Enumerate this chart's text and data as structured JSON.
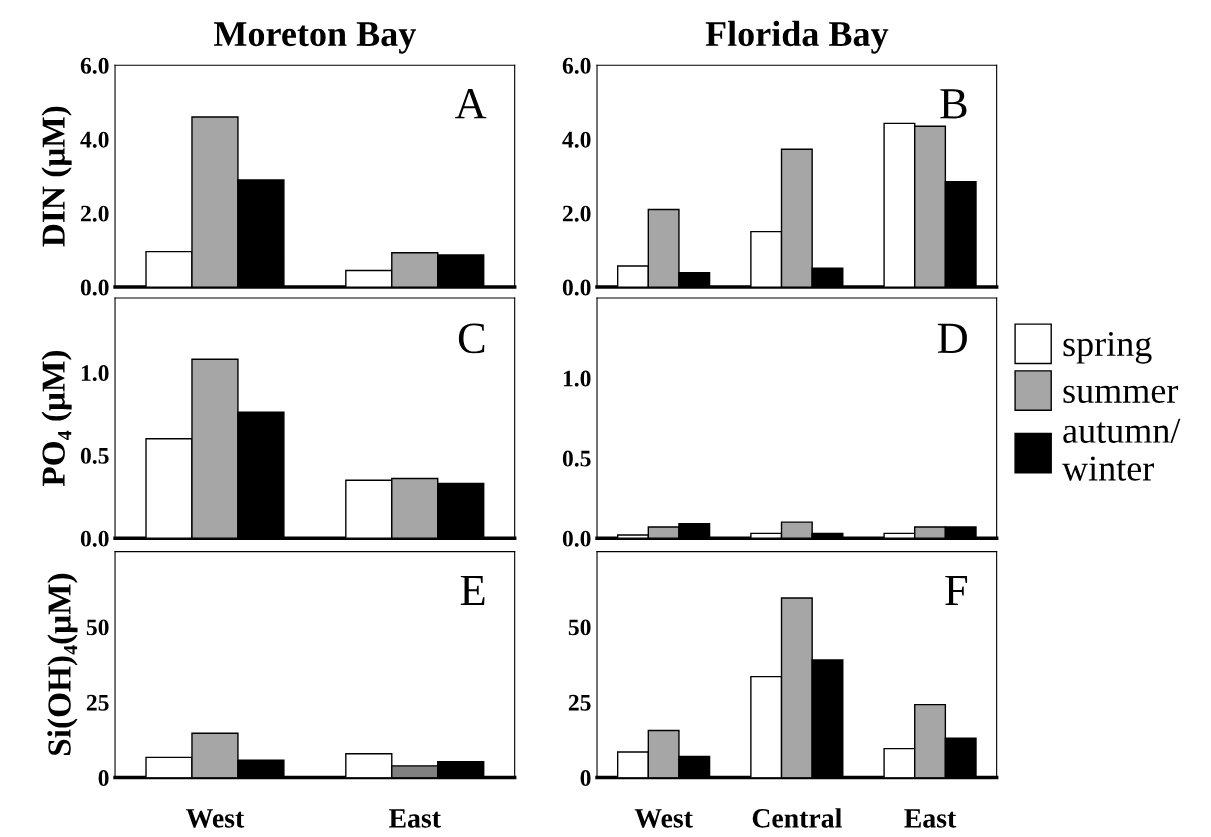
{
  "chart_data": [
    {
      "type": "bar",
      "title": "Moreton Bay",
      "ylabel": "DIN (μM)",
      "categories": [
        null,
        null
      ],
      "tick_labels": "y",
      "annotations": [
        "A"
      ],
      "ylim": [
        0,
        6.0
      ],
      "yticks": [
        {
          "value": 0,
          "label": "0.0"
        },
        {
          "value": 2,
          "label": "2.0"
        },
        {
          "value": 4,
          "label": "4.0"
        },
        {
          "value": 6,
          "label": "6.0"
        }
      ],
      "series": [
        {
          "color": "#ffffff",
          "values": [
            0.96,
            0.45
          ]
        },
        {
          "color": "#a6a6a6",
          "values": [
            4.6,
            0.93
          ]
        },
        {
          "color": "#000000",
          "values": [
            2.9,
            0.87
          ]
        }
      ]
    },
    {
      "type": "bar",
      "title": "Florida Bay",
      "categories": [
        null,
        null,
        null
      ],
      "tick_labels": "y",
      "annotations": [
        "B"
      ],
      "ylim": [
        0,
        6.0
      ],
      "yticks": [
        {
          "value": 0,
          "label": "0.0"
        },
        {
          "value": 2,
          "label": "2.0"
        },
        {
          "value": 4,
          "label": "4.0"
        },
        {
          "value": 6,
          "label": "6.0"
        }
      ],
      "series": [
        {
          "color": "#ffffff",
          "values": [
            0.57,
            1.5,
            4.43
          ]
        },
        {
          "color": "#a6a6a6",
          "values": [
            2.1,
            3.73,
            4.35
          ]
        },
        {
          "color": "#000000",
          "values": [
            0.39,
            0.51,
            2.85
          ]
        }
      ]
    },
    {
      "type": "bar",
      "ylabel": "PO₄ (μM)",
      "categories": [
        null,
        null
      ],
      "tick_labels": "y",
      "annotations": [
        "C"
      ],
      "ylim": [
        0,
        1.45
      ],
      "yticks": [
        {
          "value": 0,
          "label": "0.0"
        },
        0.5,
        {
          "value": 1,
          "label": "1.0"
        }
      ],
      "series": [
        {
          "color": "#ffffff",
          "values": [
            0.6,
            0.35
          ]
        },
        {
          "color": "#a6a6a6",
          "values": [
            1.08,
            0.36
          ]
        },
        {
          "color": "#000000",
          "values": [
            0.76,
            0.33
          ]
        }
      ]
    },
    {
      "type": "bar",
      "categories": [
        null,
        null,
        null
      ],
      "tick_labels": "y",
      "annotations": [
        "D"
      ],
      "legend": "right",
      "ylim": [
        0,
        1.5
      ],
      "yticks": [
        {
          "value": 0,
          "label": "0.0"
        },
        0.5,
        {
          "value": 1,
          "label": "1.0"
        }
      ],
      "series": [
        {
          "name": "spring",
          "color": "#ffffff",
          "values": [
            0.02,
            0.03,
            0.03
          ]
        },
        {
          "name": "summer",
          "color": "#a6a6a6",
          "values": [
            0.07,
            0.1,
            0.07
          ]
        },
        {
          "name": "autumn/\nwinter",
          "color": "#000000",
          "values": [
            0.09,
            0.03,
            0.07
          ]
        }
      ]
    },
    {
      "type": "bar",
      "ylabel": "Si(OH)₄(μM)",
      "categories": [
        "West",
        "East"
      ],
      "annotations": [
        "E"
      ],
      "ylim": [
        0,
        75
      ],
      "yticks": [
        0,
        25,
        50
      ],
      "series": [
        {
          "color": "#ffffff",
          "values": [
            6.7,
            7.9
          ]
        },
        {
          "color": "#a6a6a6",
          "colors": [
            "#a6a6a6",
            "#808080"
          ],
          "values": [
            14.7,
            3.9
          ]
        },
        {
          "color": "#000000",
          "values": [
            5.8,
            5.3
          ]
        }
      ]
    },
    {
      "type": "bar",
      "categories": [
        "West",
        "Central",
        "East"
      ],
      "annotations": [
        "F"
      ],
      "ylim": [
        0,
        75
      ],
      "yticks": [
        0,
        25,
        50
      ],
      "series": [
        {
          "color": "#ffffff",
          "values": [
            8.5,
            33.5,
            9.6
          ]
        },
        {
          "color": "#a6a6a6",
          "values": [
            15.6,
            59.6,
            24.2
          ]
        },
        {
          "color": "#000000",
          "values": [
            7.0,
            39,
            13.1
          ]
        }
      ]
    }
  ]
}
